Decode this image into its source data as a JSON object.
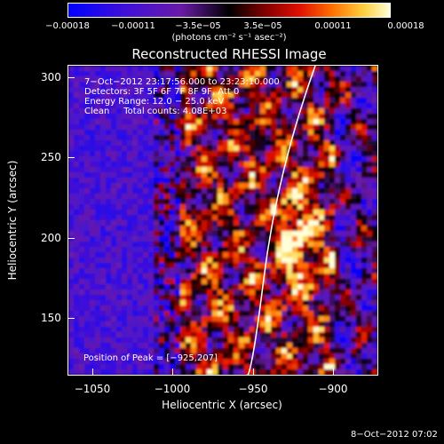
{
  "colorbar": {
    "ticks": [
      "−0.00018",
      "−0.00011",
      "−3.5e−05",
      "3.5e−05",
      "0.00011",
      "0.00018"
    ],
    "units": "(photons cm⁻² s⁻¹ asec⁻²)"
  },
  "title": "Reconstructed RHESSI Image",
  "info": {
    "time_range": "7−Oct−2012 23:17:56.000 to 23:23:10.000",
    "detectors": "Detectors: 3F 5F 6F 7F 8F 9F, Att 0",
    "energy": "Energy Range: 12.0 − 25.0 keV",
    "clean": "Clean     Total counts: 4.08E+03"
  },
  "peak": "Position of Peak = [−925,207]",
  "axes": {
    "xlabel": "Heliocentric X (arcsec)",
    "ylabel": "Heliocentric Y (arcsec)",
    "xticks": [
      "−1050",
      "−1000",
      "−950",
      "−900"
    ],
    "yticks": [
      "300",
      "250",
      "200",
      "150"
    ]
  },
  "footer_date": "8−Oct−2012 07:02",
  "colors": {
    "background": "#000000",
    "limb_line": "#ffffff"
  }
}
